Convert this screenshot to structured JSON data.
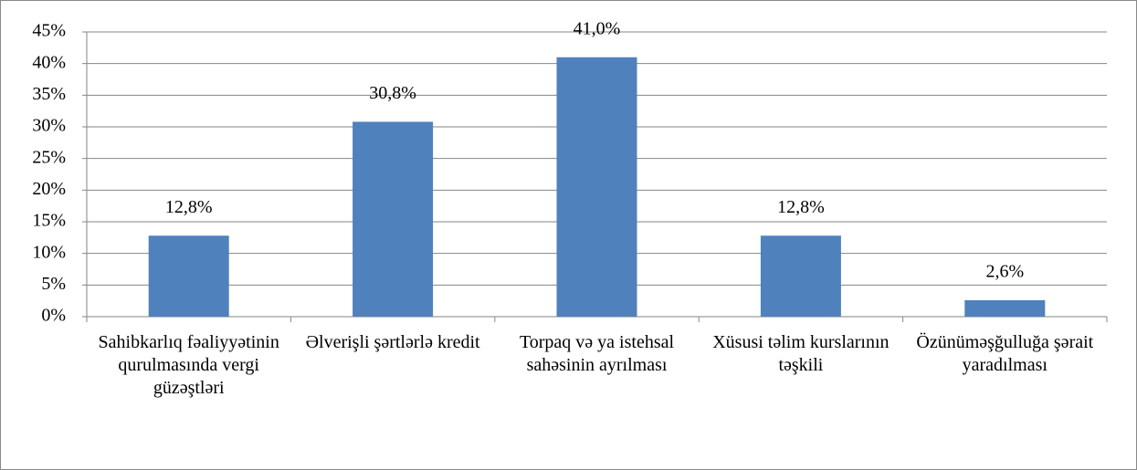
{
  "chart_data": {
    "type": "bar",
    "categories": [
      "Sahibkarlıq fəaliyyətinin qurulmasında vergi güzəştləri",
      "Əlverişli şərtlərlə kredit",
      "Torpaq və ya istehsal sahəsinin ayrılması",
      "Xüsusi təlim kurslarının təşkili",
      "Özünüməşğulluğa şərait yaradılması"
    ],
    "values": [
      12.8,
      30.8,
      41.0,
      12.8,
      2.6
    ],
    "value_labels": [
      "12,8%",
      "30,8%",
      "41,0%",
      "12,8%",
      "2,6%"
    ],
    "color": "#4f81bd",
    "ylim": [
      0,
      45
    ],
    "yticks": [
      {
        "value": 0,
        "label": "0%"
      },
      {
        "value": 5,
        "label": "5%"
      },
      {
        "value": 10,
        "label": "10%"
      },
      {
        "value": 15,
        "label": "15%"
      },
      {
        "value": 20,
        "label": "20%"
      },
      {
        "value": 25,
        "label": "25%"
      },
      {
        "value": 30,
        "label": "30%"
      },
      {
        "value": 35,
        "label": "35%"
      },
      {
        "value": 40,
        "label": "40%"
      },
      {
        "value": 45,
        "label": "45%"
      }
    ],
    "grid": true
  }
}
